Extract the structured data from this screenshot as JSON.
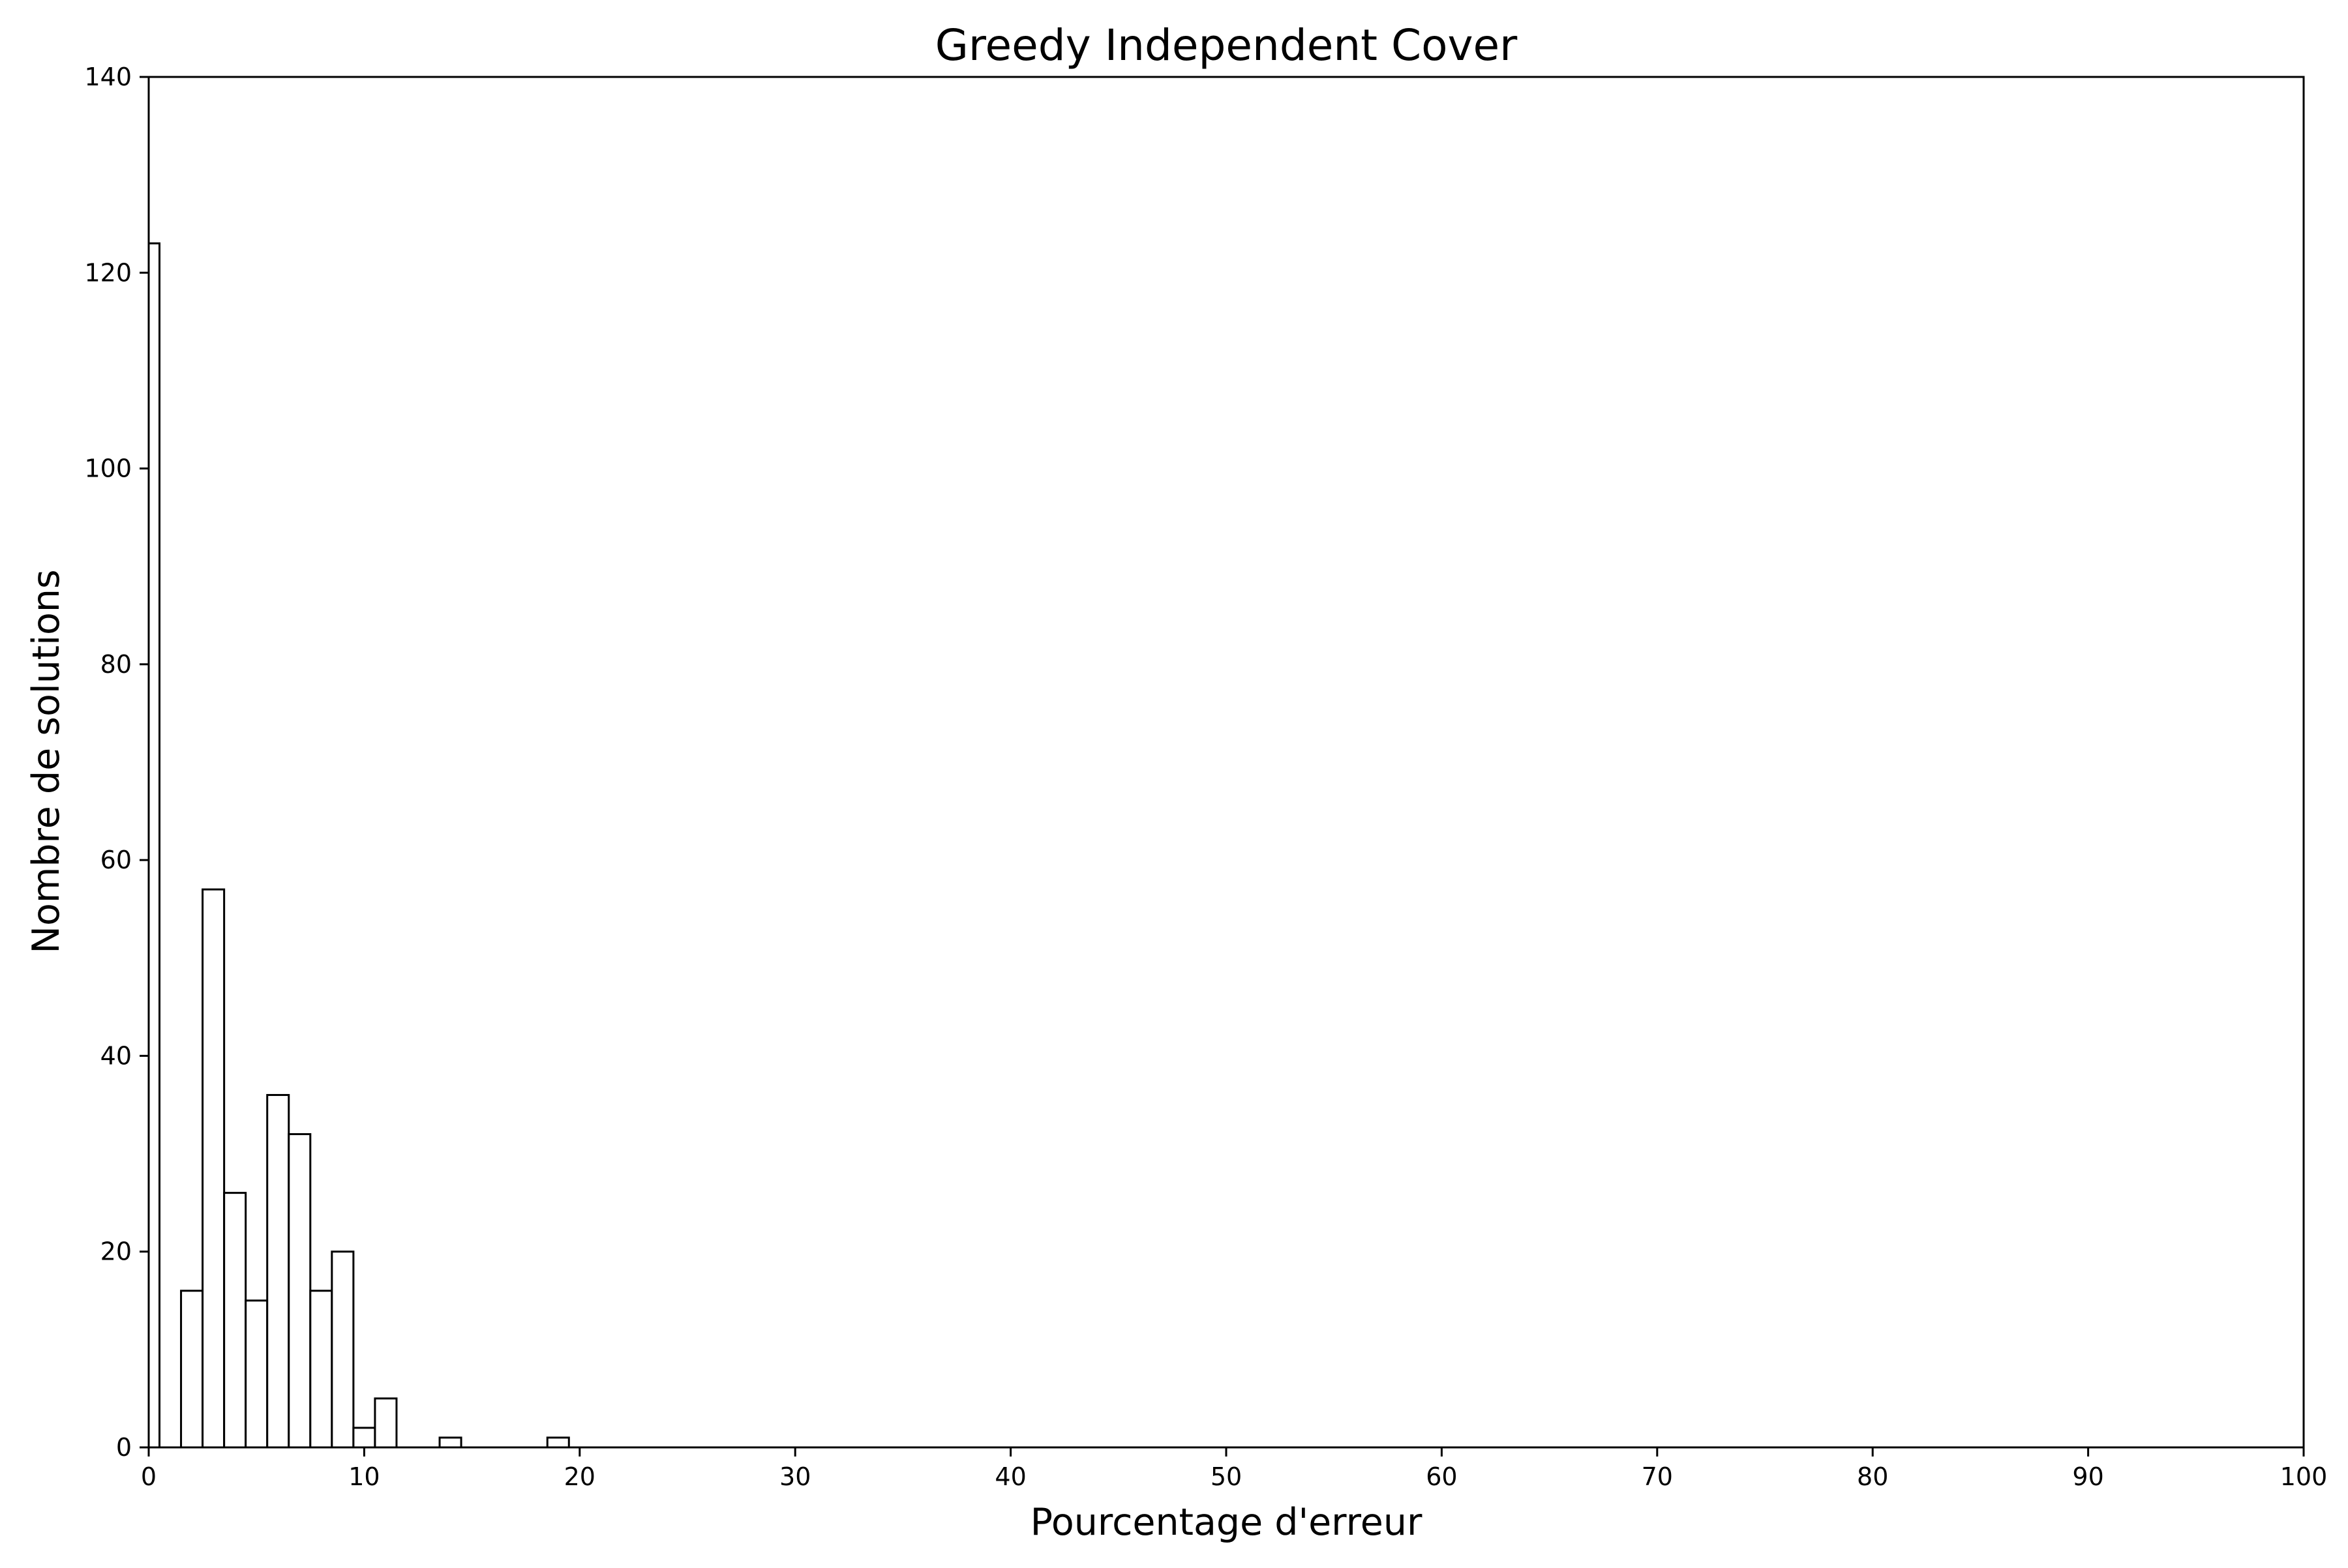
{
  "chart_data": {
    "type": "bar",
    "title": "Greedy Independent Cover",
    "xlabel": "Pourcentage d'erreur",
    "ylabel": "Nombre de solutions",
    "xlim": [
      0,
      100
    ],
    "ylim": [
      0,
      140
    ],
    "bin_width": 1,
    "xticks": [
      "0",
      "10",
      "20",
      "30",
      "40",
      "50",
      "60",
      "70",
      "80",
      "90",
      "100"
    ],
    "yticks": [
      "0",
      "20",
      "40",
      "60",
      "80",
      "100",
      "120",
      "140"
    ],
    "bins": [
      {
        "x0": 0,
        "x1": 0.5,
        "count": 123
      },
      {
        "x0": 1.5,
        "x1": 2.5,
        "count": 16
      },
      {
        "x0": 2.5,
        "x1": 3.5,
        "count": 57
      },
      {
        "x0": 3.5,
        "x1": 4.5,
        "count": 26
      },
      {
        "x0": 4.5,
        "x1": 5.5,
        "count": 15
      },
      {
        "x0": 5.5,
        "x1": 6.5,
        "count": 36
      },
      {
        "x0": 6.5,
        "x1": 7.5,
        "count": 32
      },
      {
        "x0": 7.5,
        "x1": 8.5,
        "count": 16
      },
      {
        "x0": 8.5,
        "x1": 9.5,
        "count": 20
      },
      {
        "x0": 9.5,
        "x1": 10.5,
        "count": 2
      },
      {
        "x0": 10.5,
        "x1": 11.5,
        "count": 5
      },
      {
        "x0": 13.5,
        "x1": 14.5,
        "count": 1
      },
      {
        "x0": 18.5,
        "x1": 19.5,
        "count": 1
      }
    ],
    "bar_fill": "#ffffff",
    "bar_stroke": "#000000",
    "grid": false,
    "legend": "none"
  }
}
